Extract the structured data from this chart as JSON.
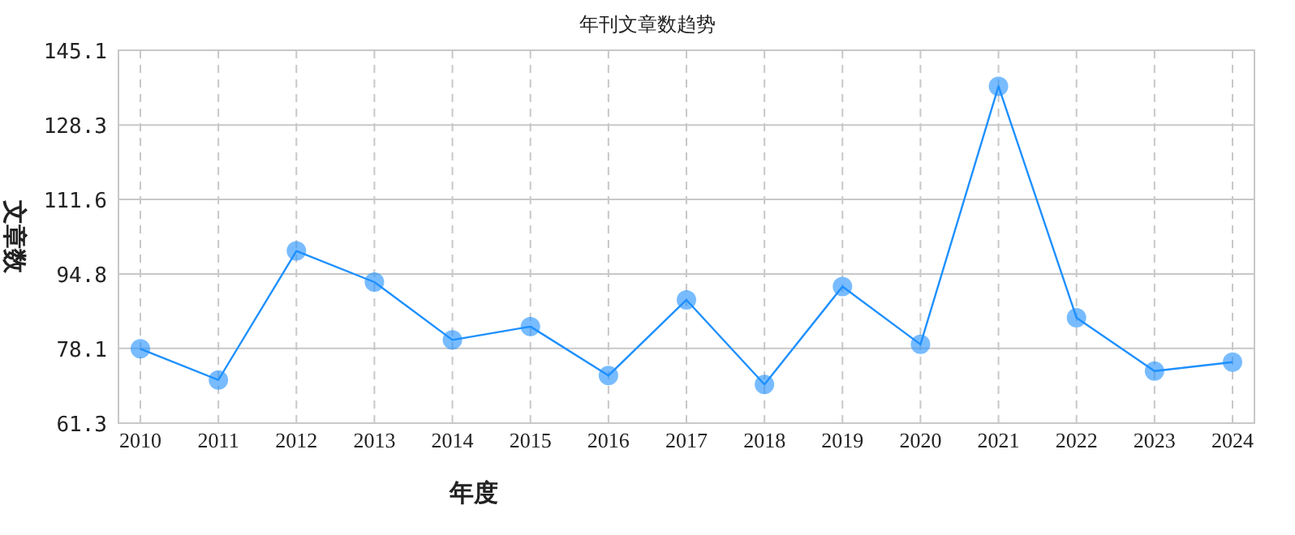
{
  "chart_data": {
    "type": "line",
    "title": "年刊文章数趋势",
    "xlabel": "年度",
    "ylabel": "文章数",
    "categories": [
      "2010",
      "2011",
      "2012",
      "2013",
      "2014",
      "2015",
      "2016",
      "2017",
      "2018",
      "2019",
      "2020",
      "2021",
      "2022",
      "2023",
      "2024"
    ],
    "series": [
      {
        "color": "#1e90ff",
        "values": [
          78,
          71,
          100,
          93,
          80,
          83,
          72,
          89,
          70,
          92,
          79,
          137,
          85,
          73,
          75
        ]
      }
    ],
    "ylim": [
      61.3,
      145.1
    ],
    "yticks": [
      61.3,
      78.1,
      94.8,
      111.6,
      128.3,
      145.1
    ],
    "grid": true,
    "marker": "circle",
    "line_style": "solid"
  }
}
